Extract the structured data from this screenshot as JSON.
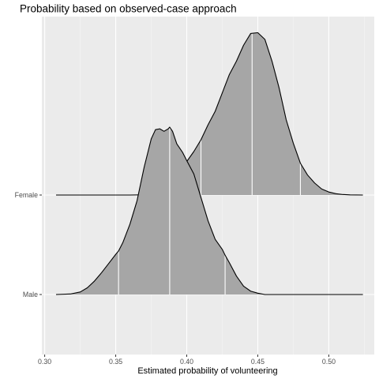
{
  "chart_data": {
    "type": "area",
    "subtype": "ridgeline-density",
    "title": "Probability based on observed-case approach",
    "xlabel": "Estimated probability of volunteering",
    "ylabel": "",
    "xlim": [
      0.298,
      0.532
    ],
    "x_ticks": [
      "0.30",
      "0.35",
      "0.40",
      "0.45",
      "0.50"
    ],
    "x_tick_values": [
      0.3,
      0.35,
      0.4,
      0.45,
      0.5
    ],
    "categories": [
      "Male",
      "Female"
    ],
    "grid": true,
    "legend": "none",
    "series": [
      {
        "name": "Male",
        "x": [
          0.308,
          0.318,
          0.325,
          0.33,
          0.335,
          0.34,
          0.345,
          0.35,
          0.352,
          0.355,
          0.36,
          0.365,
          0.37,
          0.375,
          0.378,
          0.381,
          0.384,
          0.387,
          0.388,
          0.39,
          0.393,
          0.397,
          0.4,
          0.405,
          0.41,
          0.415,
          0.42,
          0.425,
          0.427,
          0.43,
          0.435,
          0.44,
          0.445,
          0.45,
          0.455,
          0.46,
          0.47,
          0.48,
          0.5,
          0.524
        ],
        "density": [
          0.0,
          0.003,
          0.015,
          0.04,
          0.08,
          0.13,
          0.185,
          0.24,
          0.26,
          0.31,
          0.42,
          0.56,
          0.76,
          0.93,
          0.985,
          0.99,
          0.975,
          0.99,
          1.0,
          0.975,
          0.9,
          0.85,
          0.8,
          0.72,
          0.58,
          0.44,
          0.33,
          0.27,
          0.235,
          0.19,
          0.11,
          0.05,
          0.02,
          0.008,
          0.0,
          0.0,
          0.0,
          0.0,
          0.0,
          0.0
        ],
        "quantiles": [
          0.352,
          0.388,
          0.427
        ]
      },
      {
        "name": "Female",
        "x": [
          0.308,
          0.36,
          0.375,
          0.38,
          0.385,
          0.39,
          0.395,
          0.4,
          0.405,
          0.41,
          0.415,
          0.42,
          0.425,
          0.43,
          0.435,
          0.44,
          0.445,
          0.45,
          0.455,
          0.46,
          0.465,
          0.47,
          0.475,
          0.48,
          0.485,
          0.49,
          0.495,
          0.5,
          0.505,
          0.51,
          0.515,
          0.524
        ],
        "density": [
          0.0,
          0.0,
          0.002,
          0.008,
          0.02,
          0.04,
          0.1,
          0.2,
          0.26,
          0.33,
          0.42,
          0.5,
          0.61,
          0.72,
          0.8,
          0.895,
          0.965,
          0.97,
          0.93,
          0.8,
          0.64,
          0.45,
          0.31,
          0.19,
          0.12,
          0.072,
          0.036,
          0.018,
          0.008,
          0.003,
          0.001,
          0.0
        ],
        "quantiles": [
          0.41,
          0.446,
          0.48
        ]
      }
    ]
  }
}
